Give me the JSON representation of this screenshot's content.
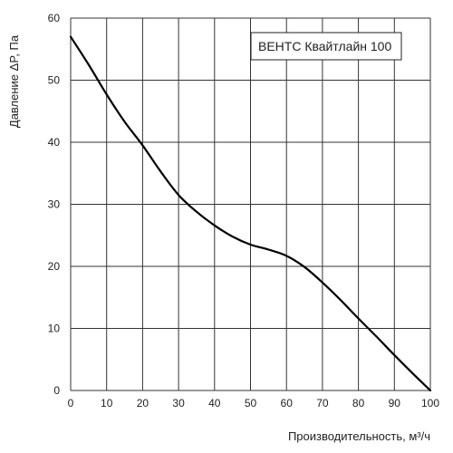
{
  "chart_data": {
    "type": "line",
    "xlabel": "Производительность, м³/ч",
    "ylabel": "Давление ΔP, Па",
    "xlim": [
      0,
      100
    ],
    "ylim": [
      0,
      60
    ],
    "x_ticks": [
      0,
      10,
      20,
      30,
      40,
      50,
      60,
      70,
      80,
      90,
      100
    ],
    "y_ticks": [
      0,
      10,
      20,
      30,
      40,
      50,
      60
    ],
    "grid": true,
    "legend_position": "top-right",
    "series": [
      {
        "name": "ВЕНТС Квайтлайн 100",
        "color": "#000000",
        "x": [
          0,
          5,
          10,
          15,
          20,
          25,
          30,
          35,
          40,
          45,
          50,
          55,
          60,
          65,
          70,
          75,
          80,
          85,
          90,
          95,
          100
        ],
        "y": [
          57,
          52.5,
          47.7,
          43.3,
          39.5,
          35.3,
          31.5,
          28.8,
          26.6,
          24.8,
          23.5,
          22.7,
          21.7,
          19.9,
          17.4,
          14.6,
          11.6,
          8.7,
          5.7,
          2.8,
          0
        ]
      }
    ]
  }
}
